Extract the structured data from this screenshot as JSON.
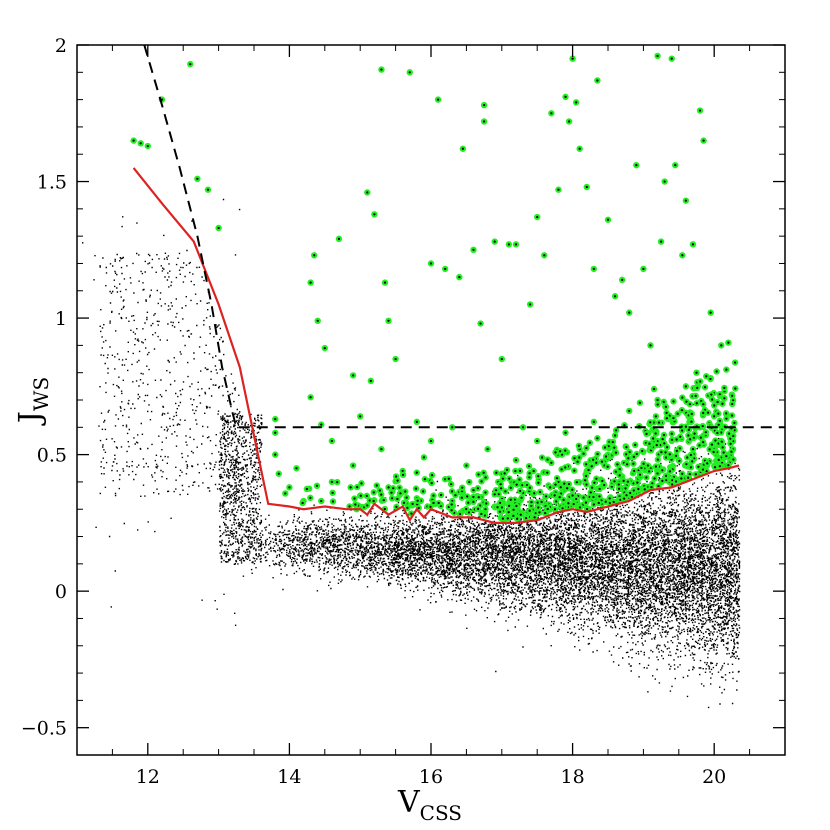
{
  "chart_data": {
    "type": "scatter",
    "title": "",
    "xlabel": "V",
    "xlabel_sub": "CSS",
    "ylabel": "J",
    "ylabel_sub": "WS",
    "xlim": [
      11.0,
      21.0
    ],
    "ylim": [
      -0.6,
      2.0
    ],
    "x_ticks": [
      12,
      14,
      16,
      18,
      20
    ],
    "y_ticks": [
      -0.5,
      0,
      0.5,
      1,
      1.5,
      2
    ],
    "x_tick_labels": [
      "12",
      "14",
      "16",
      "18",
      "20"
    ],
    "y_tick_labels": [
      "−0.5",
      "0",
      "0.5",
      "1",
      "1.5",
      "2"
    ],
    "grid": false,
    "colors": {
      "field_points": "#000000",
      "candidate_points": "#22ee22",
      "threshold_curve": "#dd2222",
      "selection_boundary": "#000000"
    },
    "series": [
      {
        "kind": "points",
        "marker": "small-dot",
        "note_cloud": "dense sequence of ~30000 black points concentrated near J_WS 0.1 at V 14, widening to J_WS -0.3..0.4 at V 20; plus sparse bright population V 11..13.5, J_WS 0.3..1.55",
        "points": []
      },
      {
        "kind": "points",
        "marker": "green-circle",
        "points": [
          [
            11.8,
            1.65
          ],
          [
            11.9,
            1.64
          ],
          [
            12.0,
            1.63
          ],
          [
            12.2,
            1.8
          ],
          [
            12.6,
            1.93
          ],
          [
            12.7,
            1.51
          ],
          [
            12.85,
            1.47
          ],
          [
            13.0,
            1.33
          ],
          [
            13.8,
            0.63
          ],
          [
            13.8,
            0.58
          ],
          [
            13.8,
            0.5
          ],
          [
            13.85,
            0.43
          ],
          [
            14.0,
            0.38
          ],
          [
            14.1,
            0.45
          ],
          [
            14.3,
            0.71
          ],
          [
            14.3,
            1.13
          ],
          [
            14.35,
            1.23
          ],
          [
            14.4,
            0.99
          ],
          [
            14.5,
            0.89
          ],
          [
            14.45,
            0.61
          ],
          [
            14.6,
            0.55
          ],
          [
            14.7,
            1.29
          ],
          [
            14.9,
            0.79
          ],
          [
            15.0,
            0.64
          ],
          [
            15.1,
            1.46
          ],
          [
            15.15,
            0.77
          ],
          [
            15.2,
            1.38
          ],
          [
            15.3,
            1.91
          ],
          [
            15.35,
            1.13
          ],
          [
            15.4,
            0.99
          ],
          [
            15.5,
            0.85
          ],
          [
            15.7,
            1.9
          ],
          [
            15.8,
            0.62
          ],
          [
            16.0,
            1.2
          ],
          [
            16.1,
            1.8
          ],
          [
            16.2,
            1.18
          ],
          [
            16.3,
            0.6
          ],
          [
            16.4,
            1.15
          ],
          [
            16.45,
            1.62
          ],
          [
            16.6,
            1.25
          ],
          [
            16.7,
            0.98
          ],
          [
            16.75,
            1.78
          ],
          [
            16.75,
            1.72
          ],
          [
            16.9,
            1.28
          ],
          [
            17.0,
            0.85
          ],
          [
            17.1,
            1.27
          ],
          [
            17.2,
            1.27
          ],
          [
            17.3,
            0.6
          ],
          [
            17.4,
            1.05
          ],
          [
            17.5,
            1.37
          ],
          [
            17.6,
            1.23
          ],
          [
            17.7,
            1.75
          ],
          [
            17.8,
            1.47
          ],
          [
            17.9,
            1.81
          ],
          [
            17.95,
            1.72
          ],
          [
            18.0,
            1.95
          ],
          [
            18.05,
            1.79
          ],
          [
            18.1,
            1.62
          ],
          [
            18.2,
            1.48
          ],
          [
            18.3,
            1.18
          ],
          [
            18.35,
            1.87
          ],
          [
            18.5,
            1.36
          ],
          [
            18.6,
            1.08
          ],
          [
            18.7,
            1.14
          ],
          [
            18.8,
            1.02
          ],
          [
            18.9,
            1.56
          ],
          [
            19.0,
            1.18
          ],
          [
            19.1,
            0.9
          ],
          [
            19.2,
            1.96
          ],
          [
            19.25,
            1.28
          ],
          [
            19.3,
            1.5
          ],
          [
            19.4,
            1.95
          ],
          [
            19.45,
            1.56
          ],
          [
            19.55,
            1.23
          ],
          [
            19.6,
            1.43
          ],
          [
            19.7,
            1.27
          ],
          [
            19.8,
            1.76
          ],
          [
            19.85,
            1.65
          ],
          [
            19.95,
            1.02
          ],
          [
            20.1,
            0.9
          ],
          [
            20.2,
            0.91
          ],
          [
            14.2,
            0.33
          ],
          [
            14.6,
            0.4
          ],
          [
            14.9,
            0.46
          ],
          [
            15.0,
            0.35
          ],
          [
            15.3,
            0.52
          ],
          [
            15.4,
            0.38
          ],
          [
            15.6,
            0.44
          ],
          [
            15.8,
            0.34
          ],
          [
            15.9,
            0.49
          ],
          [
            16.0,
            0.55
          ],
          [
            16.2,
            0.41
          ],
          [
            16.3,
            0.33
          ],
          [
            16.5,
            0.46
          ],
          [
            16.6,
            0.37
          ],
          [
            16.8,
            0.52
          ],
          [
            16.9,
            0.31
          ],
          [
            17.0,
            0.43
          ],
          [
            17.2,
            0.48
          ],
          [
            17.3,
            0.36
          ],
          [
            17.5,
            0.55
          ],
          [
            17.6,
            0.32
          ],
          [
            17.7,
            0.47
          ],
          [
            17.8,
            0.4
          ],
          [
            17.9,
            0.58
          ],
          [
            18.0,
            0.35
          ],
          [
            18.1,
            0.52
          ],
          [
            18.2,
            0.44
          ],
          [
            18.3,
            0.62
          ],
          [
            18.4,
            0.38
          ],
          [
            18.5,
            0.49
          ],
          [
            18.6,
            0.57
          ],
          [
            18.7,
            0.42
          ],
          [
            18.8,
            0.66
          ],
          [
            18.9,
            0.36
          ],
          [
            19.0,
            0.51
          ],
          [
            19.1,
            0.45
          ],
          [
            19.2,
            0.7
          ],
          [
            19.3,
            0.41
          ],
          [
            19.4,
            0.55
          ],
          [
            19.5,
            0.48
          ],
          [
            19.6,
            0.75
          ],
          [
            19.7,
            0.52
          ],
          [
            19.8,
            0.6
          ],
          [
            19.9,
            0.46
          ],
          [
            20.0,
            0.68
          ],
          [
            20.1,
            0.55
          ],
          [
            20.2,
            0.5
          ],
          [
            20.25,
            0.72
          ],
          [
            19.65,
            0.62
          ],
          [
            19.85,
            0.57
          ],
          [
            19.35,
            0.63
          ],
          [
            19.05,
            0.58
          ],
          [
            18.75,
            0.53
          ],
          [
            18.45,
            0.46
          ],
          [
            20.05,
            0.47
          ],
          [
            19.95,
            0.78
          ],
          [
            19.75,
            0.8
          ],
          [
            19.15,
            0.74
          ],
          [
            18.95,
            0.69
          ],
          [
            18.35,
            0.56
          ],
          [
            17.85,
            0.5
          ],
          [
            17.45,
            0.44
          ],
          [
            16.95,
            0.4
          ],
          [
            16.45,
            0.36
          ],
          [
            15.95,
            0.31
          ],
          [
            15.45,
            0.34
          ],
          [
            14.95,
            0.3
          ],
          [
            14.45,
            0.33
          ]
        ]
      },
      {
        "kind": "line",
        "style": "solid",
        "points": [
          [
            11.8,
            1.55
          ],
          [
            12.2,
            1.42
          ],
          [
            12.65,
            1.28
          ],
          [
            13.0,
            1.05
          ],
          [
            13.3,
            0.82
          ],
          [
            13.7,
            0.32
          ],
          [
            14.0,
            0.31
          ],
          [
            14.2,
            0.3
          ],
          [
            14.5,
            0.31
          ],
          [
            14.8,
            0.3
          ],
          [
            15.0,
            0.3
          ],
          [
            15.1,
            0.28
          ],
          [
            15.2,
            0.32
          ],
          [
            15.3,
            0.3
          ],
          [
            15.4,
            0.28
          ],
          [
            15.6,
            0.31
          ],
          [
            15.7,
            0.26
          ],
          [
            15.8,
            0.3
          ],
          [
            15.9,
            0.27
          ],
          [
            16.0,
            0.3
          ],
          [
            16.3,
            0.27
          ],
          [
            16.6,
            0.27
          ],
          [
            16.9,
            0.25
          ],
          [
            17.2,
            0.25
          ],
          [
            17.5,
            0.26
          ],
          [
            17.8,
            0.29
          ],
          [
            18.0,
            0.3
          ],
          [
            18.2,
            0.29
          ],
          [
            18.5,
            0.31
          ],
          [
            18.8,
            0.33
          ],
          [
            19.1,
            0.37
          ],
          [
            19.4,
            0.38
          ],
          [
            19.7,
            0.41
          ],
          [
            20.0,
            0.44
          ],
          [
            20.2,
            0.45
          ],
          [
            20.35,
            0.46
          ]
        ]
      },
      {
        "kind": "line",
        "style": "dashed",
        "points": [
          [
            11.95,
            2.0
          ],
          [
            12.2,
            1.78
          ],
          [
            12.45,
            1.55
          ],
          [
            12.7,
            1.3
          ],
          [
            12.9,
            1.05
          ],
          [
            13.05,
            0.82
          ],
          [
            13.2,
            0.65
          ],
          [
            13.25,
            0.6
          ],
          [
            21.0,
            0.6
          ]
        ]
      }
    ]
  }
}
